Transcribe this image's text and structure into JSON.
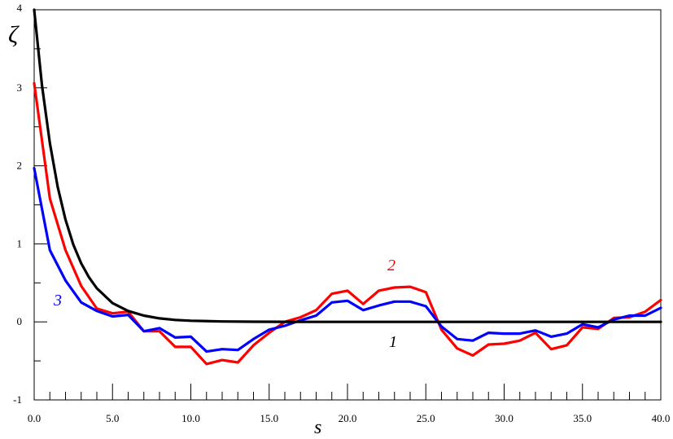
{
  "chart_data": {
    "type": "line",
    "xlabel": "s",
    "ylabel": "ζ",
    "xlim": [
      0,
      40
    ],
    "ylim": [
      -1,
      4
    ],
    "x_tick_labels": [
      "0.0",
      "5.0",
      "10.0",
      "15.0",
      "20.0",
      "25.0",
      "30.0",
      "35.0",
      "40.0"
    ],
    "x_ticks": [
      0,
      5,
      10,
      15,
      20,
      25,
      30,
      35,
      40
    ],
    "y_tick_labels": [
      "-1",
      "0",
      "1",
      "2",
      "3",
      "4"
    ],
    "y_ticks": [
      -1,
      0,
      1,
      2,
      3,
      4
    ],
    "grid": false,
    "series": [
      {
        "name": "1",
        "color": "#000000",
        "x": [
          0,
          0.5,
          1,
          1.5,
          2,
          2.5,
          3,
          3.5,
          4,
          5,
          6,
          7,
          8,
          9,
          10,
          12,
          14,
          16,
          18,
          20,
          25,
          30,
          35,
          40
        ],
        "y": [
          4.0,
          3.03,
          2.29,
          1.73,
          1.31,
          0.99,
          0.75,
          0.57,
          0.43,
          0.24,
          0.14,
          0.08,
          0.045,
          0.025,
          0.015,
          0.005,
          0.002,
          0.001,
          0,
          0,
          0,
          0,
          0,
          0
        ]
      },
      {
        "name": "2",
        "color": "#ff0000",
        "x": [
          0,
          1,
          2,
          3,
          4,
          5,
          6,
          7,
          8,
          9,
          10,
          11,
          12,
          13,
          14,
          15,
          16,
          17,
          18,
          19,
          20,
          21,
          22,
          23,
          24,
          25,
          26,
          27,
          28,
          29,
          30,
          31,
          32,
          33,
          34,
          35,
          36,
          37,
          38,
          39,
          40
        ],
        "y": [
          3.06,
          1.58,
          0.92,
          0.46,
          0.17,
          0.11,
          0.13,
          -0.12,
          -0.12,
          -0.32,
          -0.32,
          -0.54,
          -0.49,
          -0.52,
          -0.3,
          -0.14,
          0.0,
          0.06,
          0.15,
          0.36,
          0.4,
          0.23,
          0.4,
          0.44,
          0.45,
          0.38,
          -0.1,
          -0.34,
          -0.43,
          -0.29,
          -0.28,
          -0.24,
          -0.14,
          -0.35,
          -0.3,
          -0.07,
          -0.09,
          0.05,
          0.06,
          0.13,
          0.28
        ]
      },
      {
        "name": "3",
        "color": "#0000ff",
        "x": [
          0,
          1,
          2,
          3,
          4,
          5,
          6,
          7,
          8,
          9,
          10,
          11,
          12,
          13,
          14,
          15,
          16,
          17,
          18,
          19,
          20,
          21,
          22,
          23,
          24,
          25,
          26,
          27,
          28,
          29,
          30,
          31,
          32,
          33,
          34,
          35,
          36,
          37,
          38,
          39,
          40
        ],
        "y": [
          1.97,
          0.92,
          0.53,
          0.25,
          0.14,
          0.07,
          0.09,
          -0.12,
          -0.08,
          -0.2,
          -0.19,
          -0.38,
          -0.35,
          -0.36,
          -0.22,
          -0.1,
          -0.05,
          0.02,
          0.08,
          0.25,
          0.27,
          0.15,
          0.21,
          0.26,
          0.26,
          0.2,
          -0.06,
          -0.22,
          -0.24,
          -0.14,
          -0.15,
          -0.15,
          -0.11,
          -0.19,
          -0.15,
          -0.03,
          -0.07,
          0.03,
          0.08,
          0.08,
          0.18
        ]
      }
    ]
  }
}
